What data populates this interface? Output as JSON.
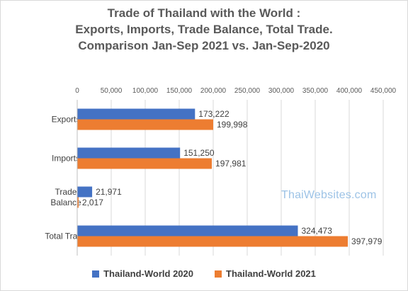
{
  "chart_data": {
    "type": "bar",
    "orientation": "horizontal",
    "title": "Trade of Thailand  with the World :\nExports,  Imports, Trade Balance, Total Trade.\nComparison  Jan-Sep  2021 vs. Jan-Sep-2020",
    "categories": [
      "Exports",
      "Imports",
      "Trade Balance",
      "Total Trade"
    ],
    "category_labels": [
      [
        "Exports"
      ],
      [
        "Imports"
      ],
      [
        "Trade",
        "Balance"
      ],
      [
        "Total Trade"
      ]
    ],
    "series": [
      {
        "name": "Thailand-World 2020",
        "color": "#4472c4",
        "values": [
          173222,
          151250,
          21971,
          324473
        ]
      },
      {
        "name": "Thailand-World 2021",
        "color": "#ed7d31",
        "values": [
          199998,
          197981,
          2017,
          397979
        ]
      }
    ],
    "data_labels": [
      [
        "173,222",
        "151,250",
        "21,971",
        "324,473"
      ],
      [
        "199,998",
        "197,981",
        "2,017",
        "397,979"
      ]
    ],
    "xlim": [
      0,
      450000
    ],
    "x_ticks": [
      0,
      50000,
      100000,
      150000,
      200000,
      250000,
      300000,
      350000,
      400000,
      450000
    ],
    "x_tick_labels": [
      "0",
      "50,000",
      "100,000",
      "150,000",
      "200,000",
      "250,000",
      "300,000",
      "350,000",
      "400,000",
      "450,000"
    ],
    "x_axis_position": "top",
    "grid": true,
    "legend": "bottom",
    "watermark": "ThaiWebsites.com"
  }
}
